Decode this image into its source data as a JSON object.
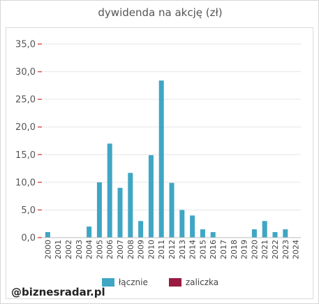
{
  "title": "dywidenda na akcję (zł)",
  "watermark": "@biznesradar.pl",
  "chart_data": {
    "type": "bar",
    "title": "dywidenda na akcję (zł)",
    "xlabel": "",
    "ylabel": "",
    "ylim": [
      0,
      35
    ],
    "y_ticks": [
      "0,0",
      "5,0",
      "10,0",
      "15,0",
      "20,0",
      "25,0",
      "30,0",
      "35,0"
    ],
    "grid": true,
    "legend_position": "bottom",
    "categories": [
      "2000",
      "2001",
      "2002",
      "2003",
      "2004",
      "2005",
      "2006",
      "2007",
      "2008",
      "2009",
      "2010",
      "2011",
      "2012",
      "2013",
      "2014",
      "2015",
      "2016",
      "2017",
      "2018",
      "2019",
      "2020",
      "2021",
      "2022",
      "2023",
      "2024"
    ],
    "series": [
      {
        "name": "łącznie",
        "color": "#3fa6c4",
        "values": [
          1.0,
          0,
          0,
          0,
          2.0,
          10.0,
          17.0,
          9.0,
          11.7,
          3.0,
          14.9,
          28.4,
          9.9,
          5.0,
          4.0,
          1.5,
          1.0,
          0,
          0,
          0,
          1.5,
          3.0,
          1.0,
          1.5,
          0
        ]
      },
      {
        "name": "zaliczka",
        "color": "#9b1a3f",
        "values": [
          0,
          0,
          0,
          0,
          0,
          0,
          0,
          0,
          0,
          0,
          0,
          0,
          0,
          0,
          0,
          0,
          0,
          0,
          0,
          0,
          0,
          0,
          0,
          0,
          0
        ]
      }
    ]
  }
}
